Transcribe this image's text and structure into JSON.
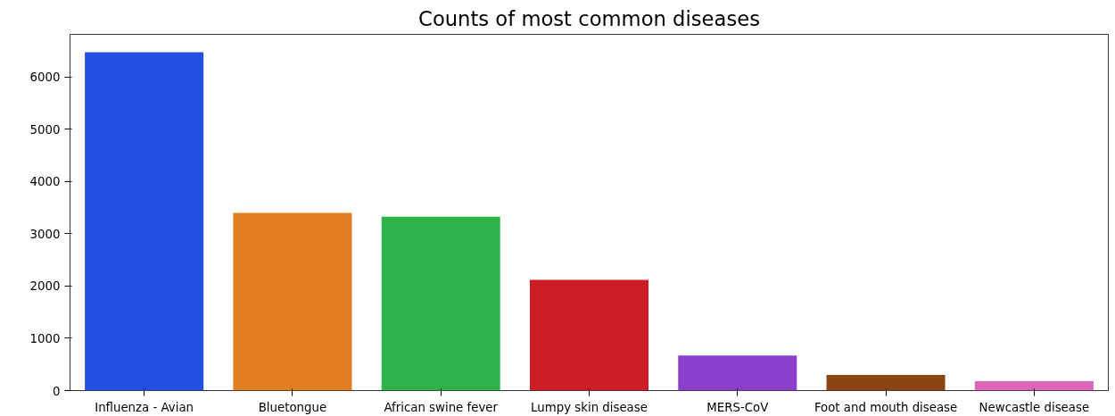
{
  "chart_data": {
    "type": "bar",
    "title": "Counts of most common diseases",
    "categories": [
      "Influenza - Avian",
      "Bluetongue",
      "African swine fever",
      "Lumpy skin disease",
      "MERS-CoV",
      "Foot and mouth disease",
      "Newcastle disease"
    ],
    "values": [
      6480,
      3400,
      3330,
      2120,
      670,
      300,
      180
    ],
    "colors": [
      "#2350e2",
      "#e07e20",
      "#2fb34a",
      "#cc1d26",
      "#8a40cc",
      "#8b4513",
      "#dd66bb"
    ],
    "ylim": [
      0,
      6820
    ],
    "yticks": [
      0,
      1000,
      2000,
      3000,
      4000,
      5000,
      6000
    ],
    "grid": false
  }
}
